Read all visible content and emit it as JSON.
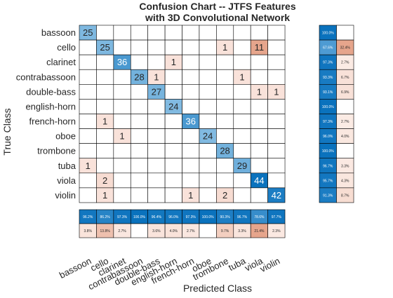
{
  "chart_data": {
    "type": "heatmap",
    "title_line1": "Confusion Chart -- JTFS Features",
    "title_line2": "with 3D Convolutional Network",
    "xlabel": "Predicted Class",
    "ylabel": "True Class",
    "classes": [
      "bassoon",
      "cello",
      "clarinet",
      "contrabassoon",
      "double-bass",
      "english-horn",
      "french-horn",
      "oboe",
      "trombone",
      "tuba",
      "viola",
      "violin"
    ],
    "matrix": [
      [
        25,
        0,
        0,
        0,
        0,
        0,
        0,
        0,
        0,
        0,
        0,
        0
      ],
      [
        0,
        25,
        0,
        0,
        0,
        0,
        0,
        0,
        1,
        0,
        11,
        0
      ],
      [
        0,
        0,
        36,
        0,
        0,
        1,
        0,
        0,
        0,
        0,
        0,
        0
      ],
      [
        0,
        0,
        0,
        28,
        1,
        0,
        0,
        0,
        0,
        1,
        0,
        0
      ],
      [
        0,
        0,
        0,
        0,
        27,
        0,
        0,
        0,
        0,
        0,
        1,
        1
      ],
      [
        0,
        0,
        0,
        0,
        0,
        24,
        0,
        0,
        0,
        0,
        0,
        0
      ],
      [
        0,
        1,
        0,
        0,
        0,
        0,
        36,
        0,
        0,
        0,
        0,
        0
      ],
      [
        0,
        0,
        1,
        0,
        0,
        0,
        0,
        24,
        0,
        0,
        0,
        0
      ],
      [
        0,
        0,
        0,
        0,
        0,
        0,
        0,
        0,
        28,
        0,
        0,
        0
      ],
      [
        1,
        0,
        0,
        0,
        0,
        0,
        0,
        0,
        0,
        29,
        0,
        0
      ],
      [
        0,
        2,
        0,
        0,
        0,
        0,
        0,
        0,
        0,
        0,
        44,
        0
      ],
      [
        0,
        1,
        0,
        0,
        0,
        0,
        1,
        0,
        2,
        0,
        0,
        42
      ]
    ],
    "row_summary": {
      "correct": [
        "100.0%",
        "67.6%",
        "97.3%",
        "93.3%",
        "93.1%",
        "100.0%",
        "97.3%",
        "96.0%",
        "100.0%",
        "96.7%",
        "95.7%",
        "91.3%"
      ],
      "incorrect": [
        "",
        "32.4%",
        "2.7%",
        "6.7%",
        "6.9%",
        "",
        "2.7%",
        "4.0%",
        "",
        "3.3%",
        "4.3%",
        "8.7%"
      ]
    },
    "column_summary": {
      "correct": [
        "96.2%",
        "86.2%",
        "97.3%",
        "100.0%",
        "96.4%",
        "96.0%",
        "97.3%",
        "100.0%",
        "90.3%",
        "96.7%",
        "78.6%",
        "97.7%"
      ],
      "incorrect": [
        "3.8%",
        "13.8%",
        "2.7%",
        "",
        "3.6%",
        "4.0%",
        "2.7%",
        "",
        "9.7%",
        "3.3%",
        "21.4%",
        "2.3%"
      ]
    },
    "colors": {
      "diag_low": "#98c8e8",
      "diag_high": "#0a72bd",
      "off_low": "#fbe8e2",
      "off_high": "#e6a58c",
      "summary_blue_low": "#5ea5d8",
      "summary_blue_high": "#0a72bd",
      "summary_red_low": "#fdf1ec",
      "summary_red_high": "#e6a58c",
      "grid": "#000000",
      "text": "#262626"
    }
  }
}
